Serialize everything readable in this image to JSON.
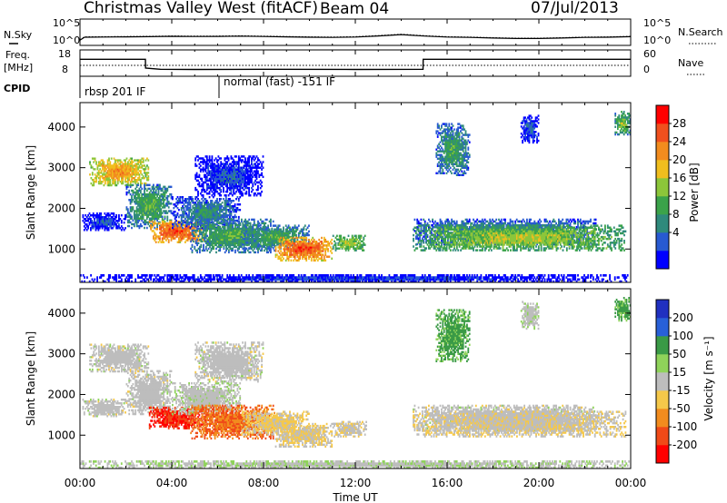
{
  "header": {
    "radar": "Christmas Valley West (fitACF)",
    "beam": "Beam 04",
    "date": "07/Jul/2013"
  },
  "strip": {
    "nsky_label": "N.Sky",
    "nsky_ticks": [
      "10^5",
      "10^0"
    ],
    "nsearch_label": "N.Search",
    "nsearch_ticks": [
      "10^5",
      "10^0"
    ],
    "freq_label": "Freq.",
    "freq_unit": "[MHz]",
    "freq_ticks": [
      "18",
      "8"
    ],
    "nave_label": "Nave",
    "nave_ticks": [
      "60",
      "0"
    ],
    "cpid_label": "CPID",
    "cpid_segments": [
      "rbsp 201 IF",
      "normal (fast) -151 IF"
    ]
  },
  "chart_data": [
    {
      "type": "line",
      "panel": "noise-and-frequency",
      "x_unit": "UT hours",
      "xlim": [
        0,
        24
      ],
      "series": [
        {
          "name": "N.Sky",
          "x": [
            0,
            0.2,
            1,
            2,
            3,
            4,
            5,
            6,
            7,
            8,
            9,
            10,
            11,
            12,
            13,
            14,
            15,
            16,
            17,
            18,
            19,
            20,
            21,
            22,
            23,
            24
          ],
          "values": [
            10,
            70,
            80,
            90,
            100,
            130,
            110,
            120,
            140,
            110,
            90,
            70,
            60,
            80,
            160,
            400,
            150,
            80,
            60,
            40,
            30,
            30,
            40,
            60,
            70,
            100
          ]
        },
        {
          "name": "Freq.",
          "x": [
            0,
            2.85,
            2.86,
            3.5,
            5,
            8,
            12,
            14.95,
            14.96,
            24
          ],
          "values": [
            15.6,
            15.6,
            11.2,
            10.6,
            10.5,
            10.6,
            10.5,
            10.6,
            15.6,
            15.6
          ]
        }
      ]
    },
    {
      "type": "heatmap",
      "panel": "power",
      "ylabel": "Slant Range [km]",
      "xlabel": "Time UT",
      "x_ticks": [
        "00:00",
        "04:00",
        "08:00",
        "12:00",
        "16:00",
        "20:00",
        "00:00"
      ],
      "y_ticks": [
        "1000",
        "2000",
        "3000",
        "4000"
      ],
      "ylim": [
        180,
        4600
      ],
      "colorbar": {
        "label": "Power [dB]",
        "ticks": [
          "4",
          "8",
          "12",
          "16",
          "20",
          "24",
          "28"
        ],
        "colors": [
          "#0000ff",
          "#285ad2",
          "#2f8a7c",
          "#3ba34a",
          "#8cc63a",
          "#f0be1e",
          "#f28c1e",
          "#f0501e",
          "#ff0000"
        ]
      }
    },
    {
      "type": "heatmap",
      "panel": "velocity",
      "ylabel": "Slant Range [km]",
      "x_ticks": [
        "00:00",
        "04:00",
        "08:00",
        "12:00",
        "16:00",
        "20:00",
        "00:00"
      ],
      "y_ticks": [
        "1000",
        "2000",
        "3000",
        "4000"
      ],
      "ylim": [
        180,
        4600
      ],
      "colorbar": {
        "label": "Velocity [m s⁻¹]",
        "ticks": [
          "200",
          "100",
          "50",
          "15",
          "-15",
          "-50",
          "-100",
          "-200"
        ],
        "colors": [
          "#2030c0",
          "#2860d8",
          "#3a9a46",
          "#8fd35a",
          "#bdbdbd",
          "#f5c84a",
          "#f28c1e",
          "#f04a18",
          "#ff0000"
        ]
      }
    }
  ],
  "echo_regions": [
    {
      "t": [
        0.4,
        3.0
      ],
      "r": [
        2550,
        3250
      ],
      "p": 23,
      "v": 0
    },
    {
      "t": [
        2.0,
        4.0
      ],
      "r": [
        1500,
        2600
      ],
      "p": 14,
      "v": 0
    },
    {
      "t": [
        3.0,
        5.5
      ],
      "r": [
        1150,
        1700
      ],
      "p": 27,
      "v": -150
    },
    {
      "t": [
        4.0,
        7.0
      ],
      "r": [
        1500,
        2300
      ],
      "p": 11,
      "v": 5
    },
    {
      "t": [
        5.0,
        8.0
      ],
      "r": [
        2300,
        3300
      ],
      "p": 7,
      "v": 0
    },
    {
      "t": [
        0.1,
        2.0
      ],
      "r": [
        1450,
        1900
      ],
      "p": 7,
      "v": 0
    },
    {
      "t": [
        4.8,
        8.5
      ],
      "r": [
        900,
        1750
      ],
      "p": 14,
      "v": -100
    },
    {
      "t": [
        7.0,
        10.0
      ],
      "r": [
        1000,
        1600
      ],
      "p": 14,
      "v": -20
    },
    {
      "t": [
        8.5,
        11.0
      ],
      "r": [
        700,
        1300
      ],
      "p": 27,
      "v": -15
    },
    {
      "t": [
        11.0,
        12.5
      ],
      "r": [
        950,
        1350
      ],
      "p": 18,
      "v": -10
    },
    {
      "t": [
        14.5,
        22.5
      ],
      "r": [
        1100,
        1750
      ],
      "p": 12,
      "v": 0
    },
    {
      "t": [
        14.5,
        23.8
      ],
      "r": [
        950,
        1600
      ],
      "p": 18,
      "v": -10
    },
    {
      "t": [
        15.5,
        17.0
      ],
      "r": [
        2800,
        4100
      ],
      "p": 13,
      "v": 40
    },
    {
      "t": [
        19.2,
        20.0
      ],
      "r": [
        3600,
        4300
      ],
      "p": 8,
      "v": 5
    },
    {
      "t": [
        23.3,
        24.0
      ],
      "r": [
        3800,
        4400
      ],
      "p": 16,
      "v": 40
    },
    {
      "t": [
        0.0,
        24.0
      ],
      "r": [
        180,
        380
      ],
      "p": 6,
      "v": 10
    }
  ]
}
